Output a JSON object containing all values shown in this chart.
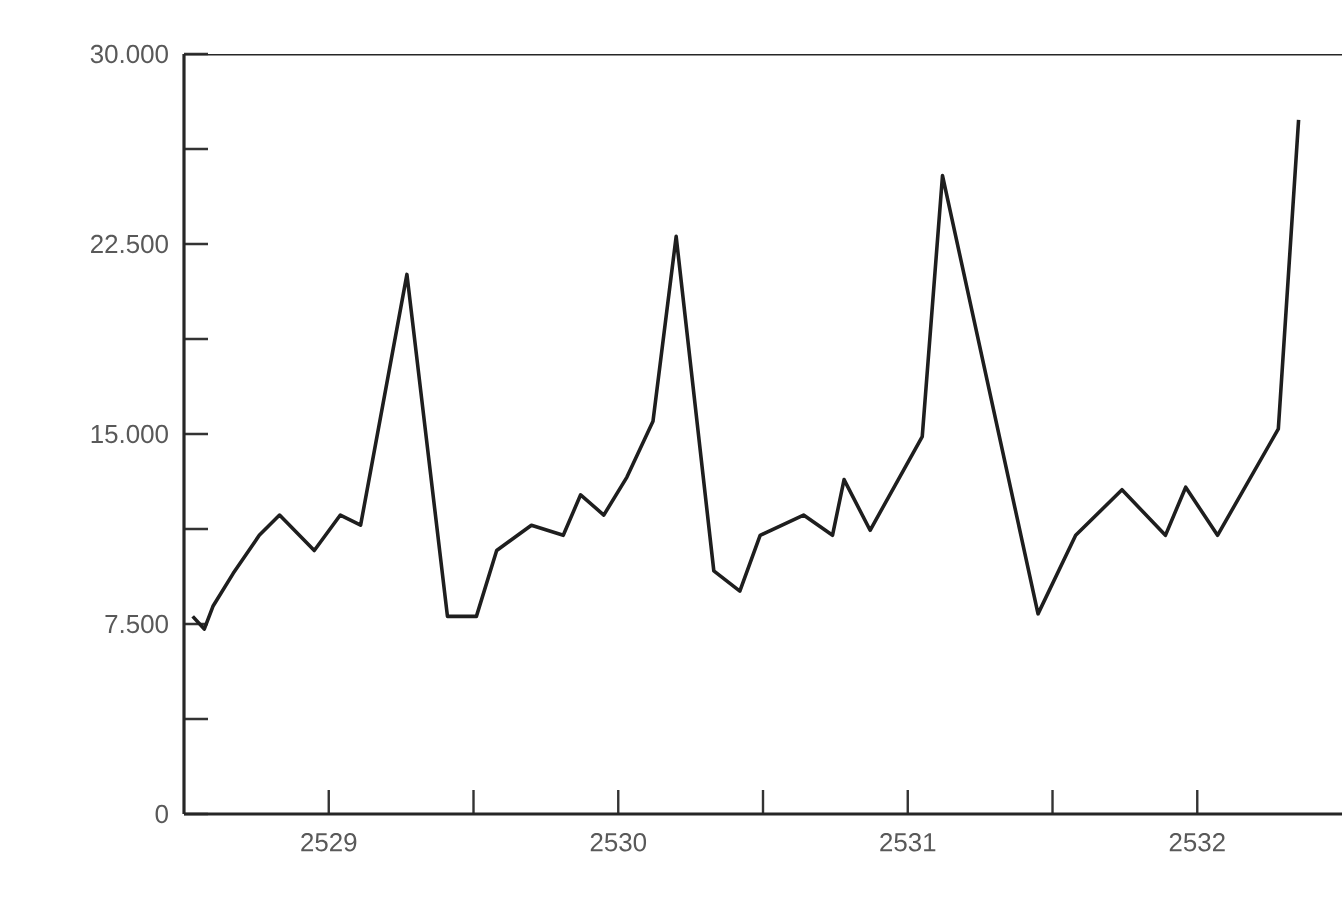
{
  "chart_data": {
    "type": "line",
    "color": "#1e1e1e",
    "marker": "none",
    "line_style": "solid",
    "x": [
      2528.53,
      2528.57,
      2528.6,
      2528.67,
      2528.76,
      2528.83,
      2528.95,
      2529.04,
      2529.11,
      2529.27,
      2529.41,
      2529.51,
      2529.58,
      2529.7,
      2529.81,
      2529.87,
      2529.95,
      2530.03,
      2530.12,
      2530.2,
      2530.33,
      2530.42,
      2530.49,
      2530.64,
      2530.74,
      2530.78,
      2530.87,
      2531.05,
      2531.12,
      2531.45,
      2531.58,
      2531.74,
      2531.89,
      2531.96,
      2532.07,
      2532.28,
      2532.35
    ],
    "values": [
      7800,
      7300,
      8200,
      9500,
      11000,
      11800,
      10400,
      11800,
      11400,
      21300,
      7800,
      7800,
      10400,
      11400,
      11000,
      12600,
      11800,
      13300,
      15500,
      22800,
      9600,
      8800,
      11000,
      11800,
      11000,
      13200,
      11200,
      14900,
      25200,
      7900,
      11000,
      12800,
      11000,
      12900,
      11000,
      15200,
      27400
    ],
    "xlim": [
      2528.5,
      2532.5
    ],
    "ylim": [
      0,
      30000
    ],
    "xticks": [
      2529,
      {
        "value": 2529.5,
        "label": null
      },
      2530,
      {
        "value": 2530.5,
        "label": null
      },
      2531,
      {
        "value": 2531.5,
        "label": null
      },
      2532
    ],
    "yticks": [
      0,
      {
        "value": 3750,
        "label": null
      },
      {
        "value": 7500,
        "label": "7.500"
      },
      {
        "value": 11250,
        "label": null
      },
      {
        "value": 15000,
        "label": "15.000"
      },
      {
        "value": 18750,
        "label": null
      },
      {
        "value": 22500,
        "label": "22.500"
      },
      {
        "value": 26250,
        "label": null
      },
      {
        "value": 30000,
        "label": "30.000"
      }
    ]
  }
}
